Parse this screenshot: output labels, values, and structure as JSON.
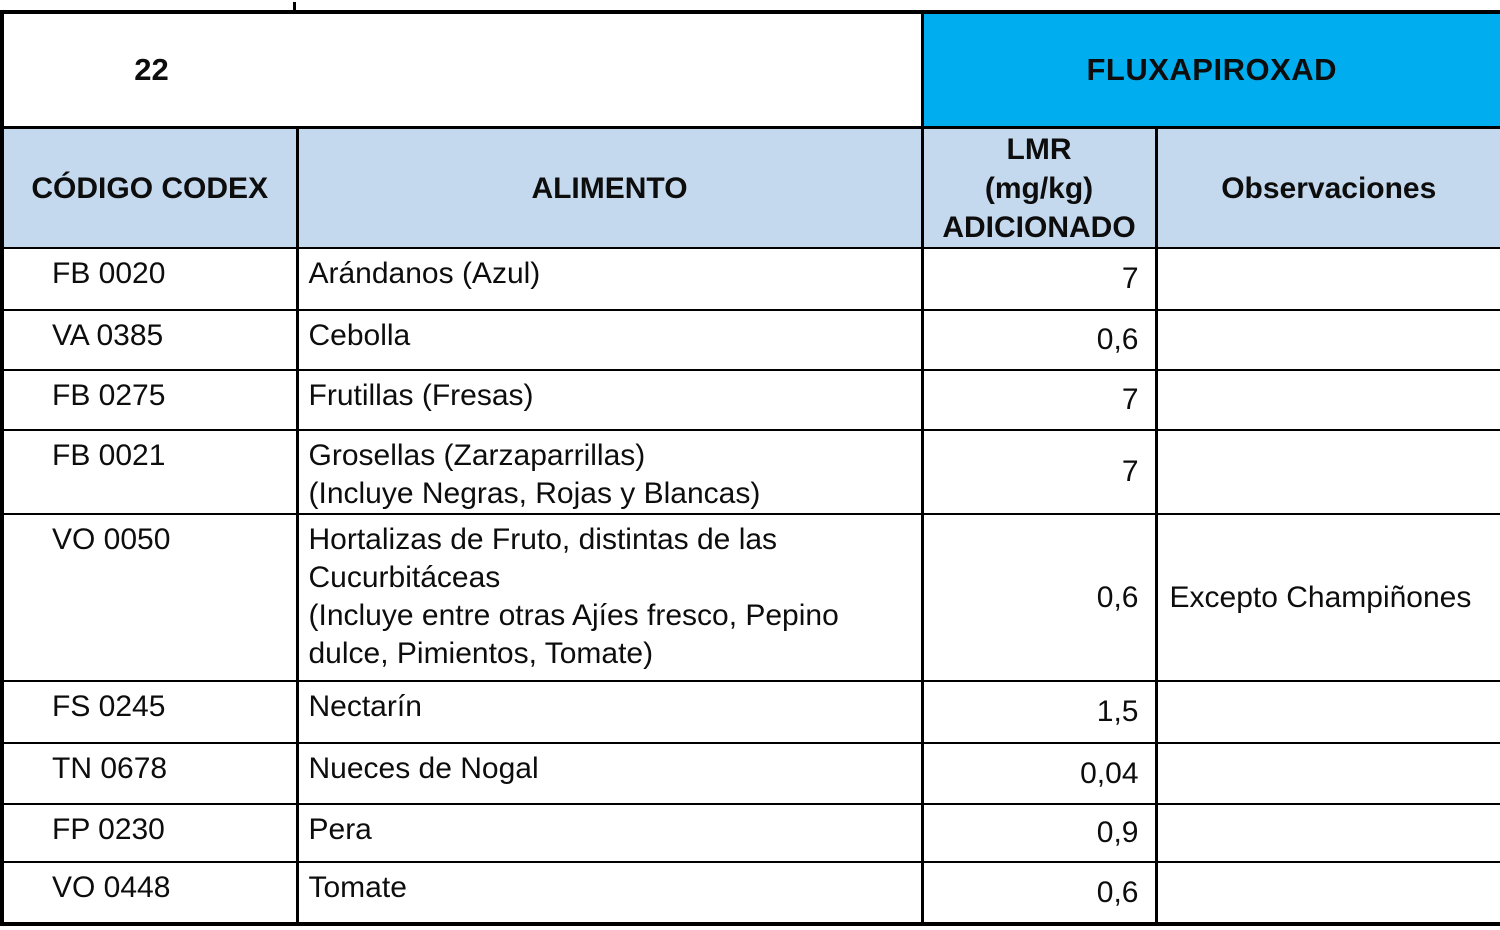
{
  "page": {
    "number": "22"
  },
  "title": {
    "compound": "FLUXAPIROXAD"
  },
  "columns": {
    "codex": "CÓDIGO CODEX",
    "food": "ALIMENTO",
    "lmr_lines": [
      "LMR",
      "(mg/kg)",
      "ADICIONADO"
    ],
    "observations": "Observaciones"
  },
  "colors": {
    "title_bg": "#00AEEF",
    "header_bg": "#C5D9EE",
    "border": "#000000",
    "text": "#0d0d0d"
  },
  "rows": [
    {
      "code": "FB 0020",
      "food_lines": [
        "Arándanos (Azul)"
      ],
      "lmr": "7",
      "observation": ""
    },
    {
      "code": "VA 0385",
      "food_lines": [
        "Cebolla"
      ],
      "lmr": "0,6",
      "observation": ""
    },
    {
      "code": "FB 0275",
      "food_lines": [
        "Frutillas (Fresas)"
      ],
      "lmr": "7",
      "observation": ""
    },
    {
      "code": "FB 0021",
      "food_lines": [
        "Grosellas (Zarzaparrillas)",
        "(Incluye Negras, Rojas y Blancas)"
      ],
      "lmr": "7",
      "observation": ""
    },
    {
      "code": "VO 0050",
      "food_lines": [
        "Hortalizas de Fruto, distintas de las",
        "Cucurbitáceas",
        "(Incluye entre otras Ajíes fresco, Pepino",
        "dulce, Pimientos, Tomate)"
      ],
      "lmr": "0,6",
      "observation": "Excepto Champiñones"
    },
    {
      "code": "FS 0245",
      "food_lines": [
        "Nectarín"
      ],
      "lmr": "1,5",
      "observation": ""
    },
    {
      "code": "TN 0678",
      "food_lines": [
        "Nueces de Nogal"
      ],
      "lmr": "0,04",
      "observation": ""
    },
    {
      "code": "FP 0230",
      "food_lines": [
        "Pera"
      ],
      "lmr": "0,9",
      "observation": ""
    },
    {
      "code": "VO 0448",
      "food_lines": [
        "Tomate"
      ],
      "lmr": "0,6",
      "observation": ""
    }
  ]
}
